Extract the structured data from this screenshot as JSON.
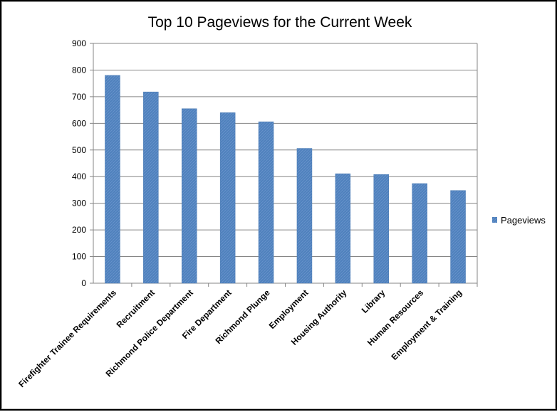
{
  "chart_data": {
    "type": "bar",
    "title": "Top 10 Pageviews for the Current Week",
    "xlabel": "",
    "ylabel": "",
    "ylim": [
      0,
      900
    ],
    "yticks": [
      0,
      100,
      200,
      300,
      400,
      500,
      600,
      700,
      800,
      900
    ],
    "grid": true,
    "legend_position": "right",
    "bar_color": "#4F81BD",
    "categories": [
      "Firefighter Trainee Requirements",
      "Recruitment",
      "Richmond Police Department",
      "Fire Department",
      "Richmond Plunge",
      "Employment",
      "Housing Authority",
      "Library",
      "Human Resources",
      "Employment & Training"
    ],
    "series": [
      {
        "name": "Pageviews",
        "values": [
          780,
          718,
          655,
          640,
          606,
          506,
          411,
          408,
          374,
          348
        ]
      }
    ]
  }
}
